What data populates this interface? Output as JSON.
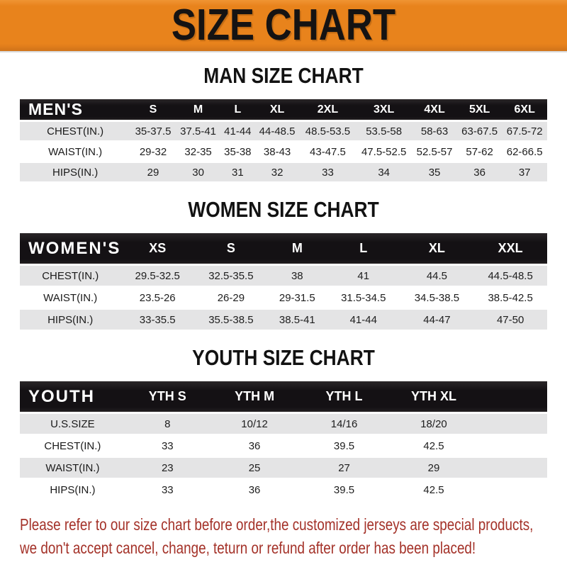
{
  "banner": {
    "title": "SIZE CHART"
  },
  "colors": {
    "banner_bg": "#E8831C",
    "header_bar_bg": "#141114",
    "row_alt_bg": "#E4E4E5",
    "footer_text": "#A43229"
  },
  "sections": [
    {
      "id": "man",
      "heading": "MAN SIZE CHART",
      "table": {
        "header": [
          "MEN'S",
          "S",
          "M",
          "L",
          "XL",
          "2XL",
          "3XL",
          "4XL",
          "5XL",
          "6XL"
        ],
        "rows": [
          [
            "CHEST(IN.)",
            "35-37.5",
            "37.5-41",
            "41-44",
            "44-48.5",
            "48.5-53.5",
            "53.5-58",
            "58-63",
            "63-67.5",
            "67.5-72"
          ],
          [
            "WAIST(IN.)",
            "29-32",
            "32-35",
            "35-38",
            "38-43",
            "43-47.5",
            "47.5-52.5",
            "52.5-57",
            "57-62",
            "62-66.5"
          ],
          [
            "HIPS(IN.)",
            "29",
            "30",
            "31",
            "32",
            "33",
            "34",
            "35",
            "36",
            "37"
          ]
        ]
      }
    },
    {
      "id": "women",
      "heading": "WOMEN SIZE CHART",
      "table": {
        "header": [
          "WOMEN'S",
          "XS",
          "S",
          "M",
          "L",
          "XL",
          "XXL"
        ],
        "rows": [
          [
            "CHEST(IN.)",
            "29.5-32.5",
            "32.5-35.5",
            "38",
            "41",
            "44.5",
            "44.5-48.5"
          ],
          [
            "WAIST(IN.)",
            "23.5-26",
            "26-29",
            "29-31.5",
            "31.5-34.5",
            "34.5-38.5",
            "38.5-42.5"
          ],
          [
            "HIPS(IN.)",
            "33-35.5",
            "35.5-38.5",
            "38.5-41",
            "41-44",
            "44-47",
            "47-50"
          ]
        ]
      }
    },
    {
      "id": "youth",
      "heading": "YOUTH SIZE CHART",
      "table": {
        "header": [
          "YOUTH",
          "YTH S",
          "YTH M",
          "YTH L",
          "YTH XL"
        ],
        "rows": [
          [
            "U.S.SIZE",
            "8",
            "10/12",
            "14/16",
            "18/20"
          ],
          [
            "CHEST(IN.)",
            "33",
            "36",
            "39.5",
            "42.5"
          ],
          [
            "WAIST(IN.)",
            "23",
            "25",
            "27",
            "29"
          ],
          [
            "HIPS(IN.)",
            "33",
            "36",
            "39.5",
            "42.5"
          ]
        ]
      }
    }
  ],
  "footer": {
    "line1": "Please refer to our size chart before order,the customized jerseys are special products,",
    "line2": "we don't accept cancel, change, teturn or refund after order has been placed!"
  }
}
